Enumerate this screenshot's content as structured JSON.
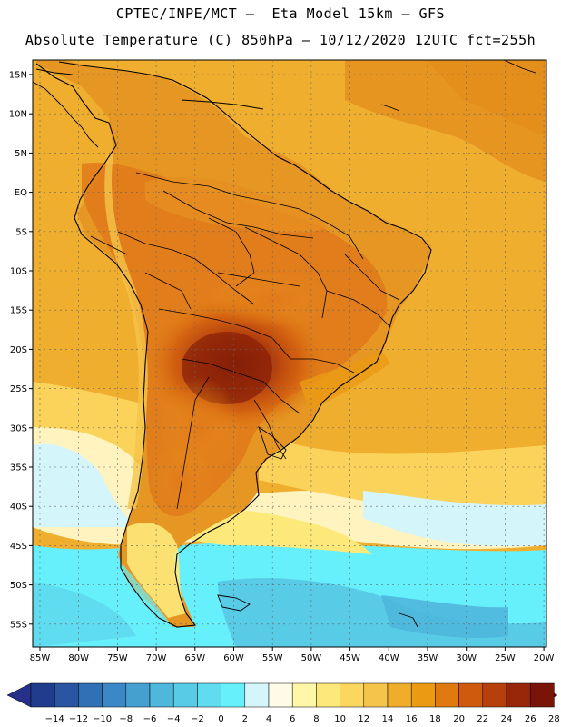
{
  "header": {
    "line1": "CPTEC/INPE/MCT —  Eta Model 15km — GFS",
    "line2": "Absolute Temperature (C) 850hPa — 10/12/2020 12UTC fct=255h"
  },
  "axes": {
    "lon_labels": [
      "85W",
      "80W",
      "75W",
      "70W",
      "65W",
      "60W",
      "55W",
      "50W",
      "45W",
      "40W",
      "35W",
      "30W",
      "25W",
      "20W"
    ],
    "lat_labels": [
      "15N",
      "10N",
      "5N",
      "EQ",
      "5S",
      "10S",
      "15S",
      "20S",
      "25S",
      "30S",
      "35S",
      "40S",
      "45S",
      "50S",
      "55S"
    ]
  },
  "colorbar": {
    "labels": [
      "-14",
      "-12",
      "-10",
      "-8",
      "-6",
      "-4",
      "-2",
      "0",
      "2",
      "4",
      "6",
      "8",
      "10",
      "12",
      "14",
      "16",
      "18",
      "20",
      "22",
      "24",
      "26",
      "28"
    ],
    "colors": [
      "#1f3d8c",
      "#2a55a0",
      "#3070b5",
      "#3a88c5",
      "#45a0d2",
      "#4fb6dc",
      "#58cbe6",
      "#5fdcef",
      "#66f0fb",
      "#d4f5fa",
      "#fffbe6",
      "#fff7a8",
      "#fde97a",
      "#fbd760",
      "#f5c44a",
      "#f0ad2a",
      "#eb9a14",
      "#e07a10",
      "#cf5a0e",
      "#b5400c",
      "#98270a",
      "#7a1408"
    ],
    "under_color": "#26308a",
    "over_color": "#6e0024"
  }
}
